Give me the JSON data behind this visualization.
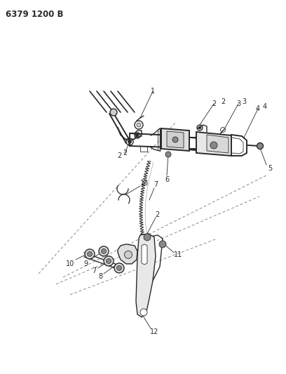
{
  "title": "6379 1200 B",
  "bg_color": "#ffffff",
  "line_color": "#2a2a2a",
  "label_color": "#1a1a1a",
  "figsize": [
    4.08,
    5.33
  ],
  "dpi": 100
}
